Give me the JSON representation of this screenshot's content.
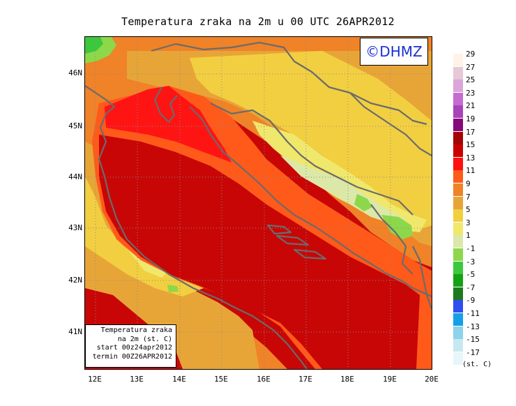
{
  "title": "Temperatura zraka na 2m u 00 UTC 26APR2012",
  "logo": "©DHMZ",
  "info_box": {
    "line1": "Temperatura zraka",
    "line2": "na 2m (st. C)",
    "line3": "start 00z24apr2012",
    "line4": "termin 00Z26APR2012"
  },
  "lat_ticks": [
    "46N",
    "45N",
    "44N",
    "43N",
    "42N",
    "41N"
  ],
  "lon_ticks": [
    "12E",
    "13E",
    "14E",
    "15E",
    "16E",
    "17E",
    "18E",
    "19E",
    "20E"
  ],
  "legend": {
    "units": "(st. C)",
    "labels": [
      "29",
      "27",
      "25",
      "23",
      "21",
      "19",
      "17",
      "15",
      "13",
      "11",
      "9",
      "7",
      "5",
      "3",
      "1",
      "-1",
      "-3",
      "-5",
      "-7",
      "-9",
      "-11",
      "-13",
      "-15",
      "-17"
    ],
    "colors": [
      "#fff2e6",
      "#e6c8d6",
      "#dca5d9",
      "#c46cd0",
      "#a844b8",
      "#860a7a",
      "#a30404",
      "#c90000",
      "#ff1010",
      "#ff5a1a",
      "#f08228",
      "#e8a537",
      "#f2cf41",
      "#f0e86c",
      "#dce8a8",
      "#8cd84a",
      "#3cc83c",
      "#14a214",
      "#1e7a1e",
      "#2d4ef0",
      "#14a0e6",
      "#8cd2ea",
      "#c8e8f0",
      "#e6f6fa"
    ]
  },
  "map": {
    "palette": {
      "sea_warm": "#c80606",
      "sea_warmer": "#ff1414",
      "coast_band": "#ff5a1a",
      "orange": "#f08228",
      "amber": "#e8a537",
      "yellow": "#f2cf41",
      "pale_yellow": "#f0e86c",
      "pale_green": "#dce8a8",
      "green": "#8cd84a",
      "dark_green": "#3cc83c"
    }
  }
}
